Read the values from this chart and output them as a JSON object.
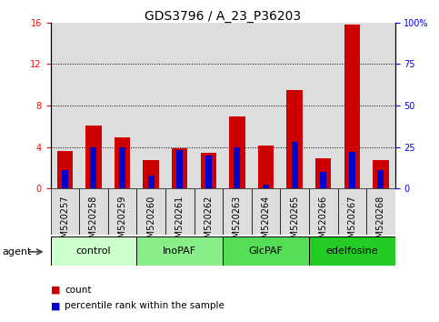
{
  "title": "GDS3796 / A_23_P36203",
  "categories": [
    "GSM520257",
    "GSM520258",
    "GSM520259",
    "GSM520260",
    "GSM520261",
    "GSM520262",
    "GSM520263",
    "GSM520264",
    "GSM520265",
    "GSM520266",
    "GSM520267",
    "GSM520268"
  ],
  "count_values": [
    3.6,
    6.1,
    4.9,
    2.7,
    3.9,
    3.4,
    6.9,
    4.1,
    9.5,
    2.9,
    15.8,
    2.7
  ],
  "percentile_values": [
    11,
    25,
    25,
    8,
    23,
    20,
    25,
    2,
    28,
    10,
    22,
    11
  ],
  "left_ylim": [
    0,
    16
  ],
  "left_yticks": [
    0,
    4,
    8,
    12,
    16
  ],
  "right_ylim": [
    0,
    100
  ],
  "right_yticks": [
    0,
    25,
    50,
    75,
    100
  ],
  "right_yticklabels": [
    "0",
    "25",
    "50",
    "75",
    "100%"
  ],
  "bar_color_count": "#cc0000",
  "bar_color_pct": "#0000cc",
  "col_bg_color": "#dddddd",
  "agent_groups": [
    {
      "label": "control",
      "start": 0,
      "end": 3,
      "color": "#ccffcc"
    },
    {
      "label": "InoPAF",
      "start": 3,
      "end": 6,
      "color": "#88ee88"
    },
    {
      "label": "GlcPAF",
      "start": 6,
      "end": 9,
      "color": "#55dd55"
    },
    {
      "label": "edelfosine",
      "start": 9,
      "end": 12,
      "color": "#22cc22"
    }
  ],
  "legend_items": [
    {
      "label": "count",
      "color": "#cc0000"
    },
    {
      "label": "percentile rank within the sample",
      "color": "#0000cc"
    }
  ],
  "agent_label": "agent",
  "title_fontsize": 10,
  "tick_fontsize": 7,
  "group_fontsize": 8,
  "legend_fontsize": 7.5
}
